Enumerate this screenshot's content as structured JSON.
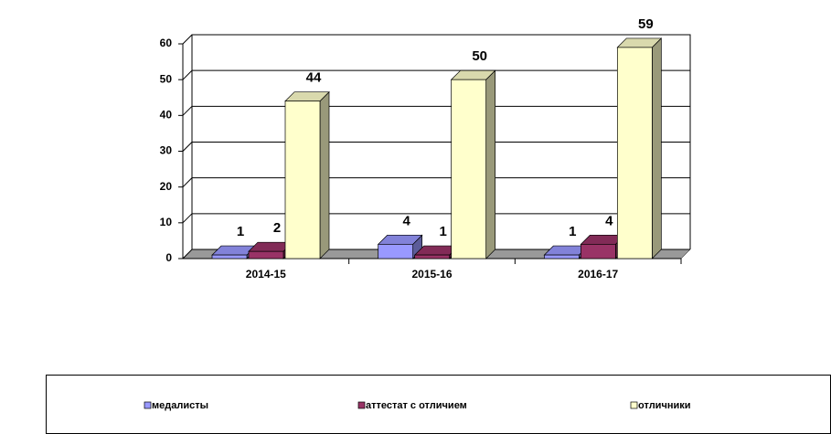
{
  "chart_data": {
    "type": "bar3d",
    "categories": [
      "2014-15",
      "2015-16",
      "2016-17"
    ],
    "series": [
      {
        "name": "медалисты",
        "color": "#9999ff",
        "values": [
          1,
          4,
          1
        ]
      },
      {
        "name": "аттестат с отличием",
        "color": "#993366",
        "values": [
          2,
          1,
          4
        ]
      },
      {
        "name": "отличники",
        "color": "#ffffcc",
        "values": [
          44,
          50,
          59
        ]
      }
    ],
    "ylim": [
      0,
      60
    ],
    "yticks": [
      0,
      10,
      20,
      30,
      40,
      50,
      60
    ],
    "grid": true,
    "legend": "bottom"
  }
}
